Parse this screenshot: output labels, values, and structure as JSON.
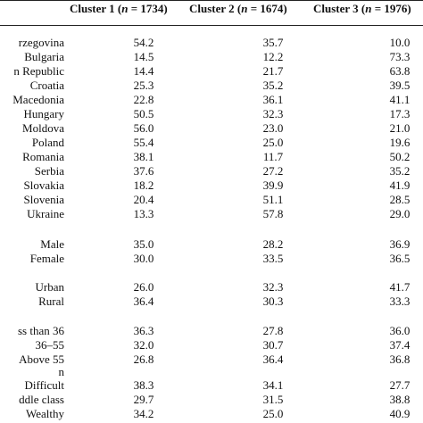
{
  "header": {
    "cluster1": {
      "name": "Cluster 1 (",
      "n": "n",
      "rest": " = 1734)"
    },
    "cluster2": {
      "name": "Cluster 2 (",
      "n": "n",
      "rest": " = 1674)"
    },
    "cluster3": {
      "name": "Cluster 3 (",
      "n": "n",
      "rest": " = 1976)"
    }
  },
  "rows": [
    {
      "label": "rzegovina",
      "v1": "54.2",
      "v2": "35.7",
      "v3": "10.0"
    },
    {
      "label": "Bulgaria",
      "v1": "14.5",
      "v2": "12.2",
      "v3": "73.3"
    },
    {
      "label": "n Republic",
      "v1": "14.4",
      "v2": "21.7",
      "v3": "63.8"
    },
    {
      "label": "Croatia",
      "v1": "25.3",
      "v2": "35.2",
      "v3": "39.5"
    },
    {
      "label": "Macedonia",
      "v1": "22.8",
      "v2": "36.1",
      "v3": "41.1"
    },
    {
      "label": "Hungary",
      "v1": "50.5",
      "v2": "32.3",
      "v3": "17.3"
    },
    {
      "label": "Moldova",
      "v1": "56.0",
      "v2": "23.0",
      "v3": "21.0"
    },
    {
      "label": "Poland",
      "v1": "55.4",
      "v2": "25.0",
      "v3": "19.6"
    },
    {
      "label": "Romania",
      "v1": "38.1",
      "v2": "11.7",
      "v3": "50.2"
    },
    {
      "label": "Serbia",
      "v1": "37.6",
      "v2": "27.2",
      "v3": "35.2"
    },
    {
      "label": "Slovakia",
      "v1": "18.2",
      "v2": "39.9",
      "v3": "41.9"
    },
    {
      "label": "Slovenia",
      "v1": "20.4",
      "v2": "51.1",
      "v3": "28.5"
    },
    {
      "label": "Ukraine",
      "v1": "13.3",
      "v2": "57.8",
      "v3": "29.0"
    },
    {
      "label": "Male",
      "v1": "35.0",
      "v2": "28.2",
      "v3": "36.9"
    },
    {
      "label": "Female",
      "v1": "30.0",
      "v2": "33.5",
      "v3": "36.5"
    },
    {
      "label": "Urban",
      "v1": "26.0",
      "v2": "32.3",
      "v3": "41.7"
    },
    {
      "label": "Rural",
      "v1": "36.4",
      "v2": "30.3",
      "v3": "33.3"
    },
    {
      "label": "ss than 36",
      "v1": "36.3",
      "v2": "27.8",
      "v3": "36.0"
    },
    {
      "label": "36–55",
      "v1": "32.0",
      "v2": "30.7",
      "v3": "37.4"
    },
    {
      "label": "Above 55",
      "v1": "26.8",
      "v2": "36.4",
      "v3": "36.8"
    },
    {
      "label": "n",
      "v1": "",
      "v2": "",
      "v3": ""
    },
    {
      "label": "Difficult",
      "v1": "38.3",
      "v2": "34.1",
      "v3": "27.7"
    },
    {
      "label": "ddle class",
      "v1": "29.7",
      "v2": "31.5",
      "v3": "38.8"
    },
    {
      "label": "Wealthy",
      "v1": "34.2",
      "v2": "25.0",
      "v3": "40.9"
    }
  ]
}
